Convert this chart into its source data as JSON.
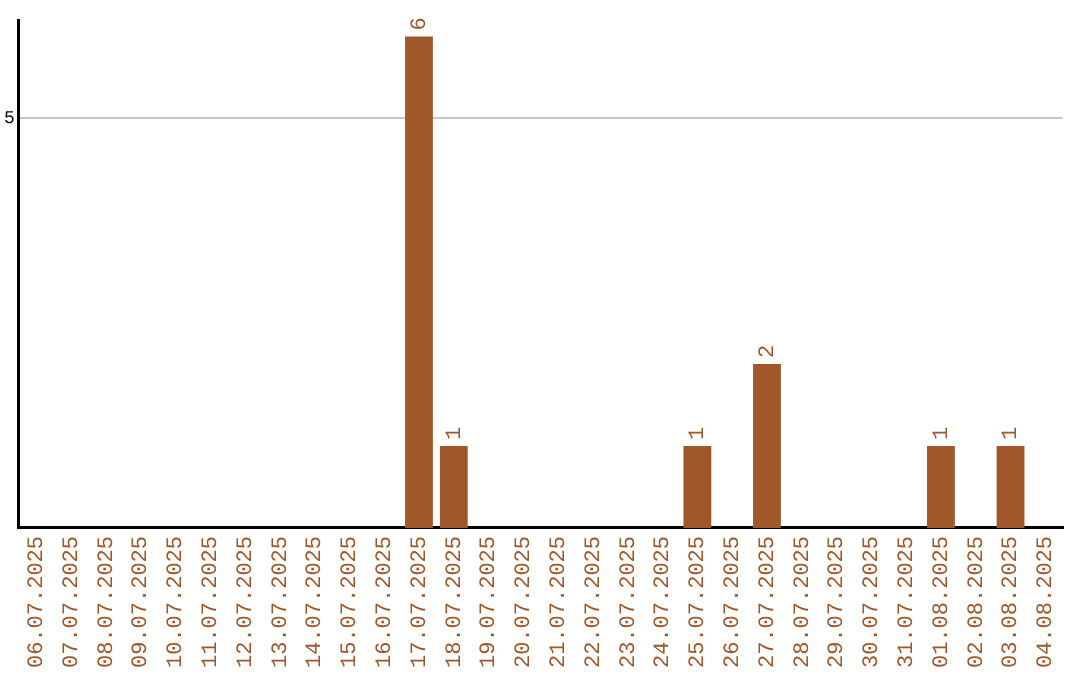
{
  "chart_data": {
    "type": "bar",
    "categories": [
      "06.07.2025",
      "07.07.2025",
      "08.07.2025",
      "09.07.2025",
      "10.07.2025",
      "11.07.2025",
      "12.07.2025",
      "13.07.2025",
      "14.07.2025",
      "15.07.2025",
      "16.07.2025",
      "17.07.2025",
      "18.07.2025",
      "19.07.2025",
      "20.07.2025",
      "21.07.2025",
      "22.07.2025",
      "23.07.2025",
      "24.07.2025",
      "25.07.2025",
      "26.07.2025",
      "27.07.2025",
      "28.07.2025",
      "29.07.2025",
      "30.07.2025",
      "31.07.2025",
      "01.08.2025",
      "02.08.2025",
      "03.08.2025",
      "04.08.2025"
    ],
    "values": [
      0,
      0,
      0,
      0,
      0,
      0,
      0,
      0,
      0,
      0,
      0,
      6,
      1,
      0,
      0,
      0,
      0,
      0,
      0,
      1,
      0,
      2,
      0,
      0,
      0,
      0,
      1,
      0,
      1,
      0
    ],
    "value_labels": [
      null,
      null,
      null,
      null,
      null,
      null,
      null,
      null,
      null,
      null,
      null,
      "6",
      "1",
      null,
      null,
      null,
      null,
      null,
      null,
      "1",
      null,
      "2",
      null,
      null,
      null,
      null,
      "1",
      null,
      "1",
      null
    ],
    "color": "#a0582a",
    "ylim": [
      0,
      6.2
    ],
    "yticks": [
      5
    ],
    "grid": "y",
    "legend": false
  }
}
